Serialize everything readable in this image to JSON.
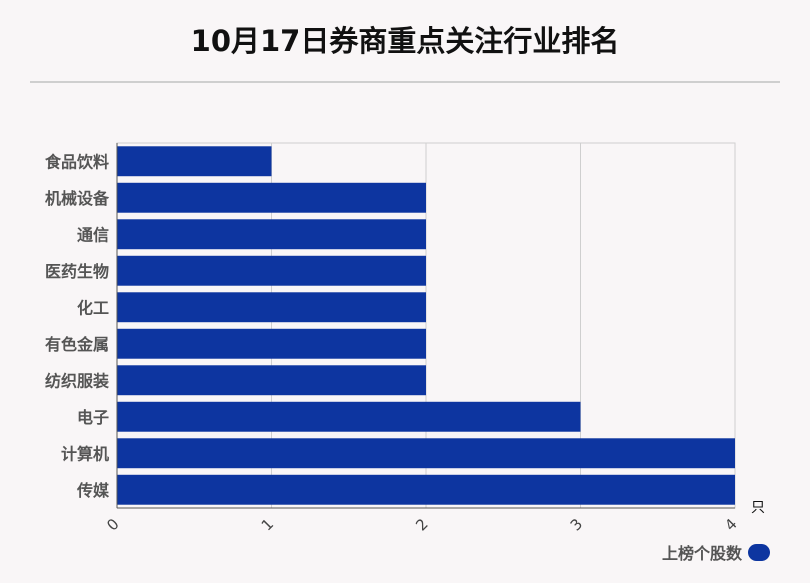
{
  "header": {
    "title": "10月17日券商重点关注行业排名"
  },
  "legend": {
    "label": "上榜个股数"
  },
  "colors": {
    "bar": "#0d35a0",
    "grid": "#cfcfcf",
    "axis": "#555555"
  },
  "chart_data": {
    "type": "bar",
    "orientation": "horizontal",
    "title": "10月17日券商重点关注行业排名",
    "categories": [
      "食品饮料",
      "机械设备",
      "通信",
      "医药生物",
      "化工",
      "有色金属",
      "纺织服装",
      "电子",
      "计算机",
      "传媒"
    ],
    "series": [
      {
        "name": "上榜个股数",
        "values": [
          1,
          2,
          2,
          2,
          2,
          2,
          2,
          3,
          4,
          4
        ]
      }
    ],
    "x_ticks": [
      "0",
      "1",
      "2",
      "3",
      "4"
    ],
    "x_unit": "只",
    "xlim": [
      0,
      4
    ],
    "grid": true,
    "legend_position": "bottom-right"
  }
}
